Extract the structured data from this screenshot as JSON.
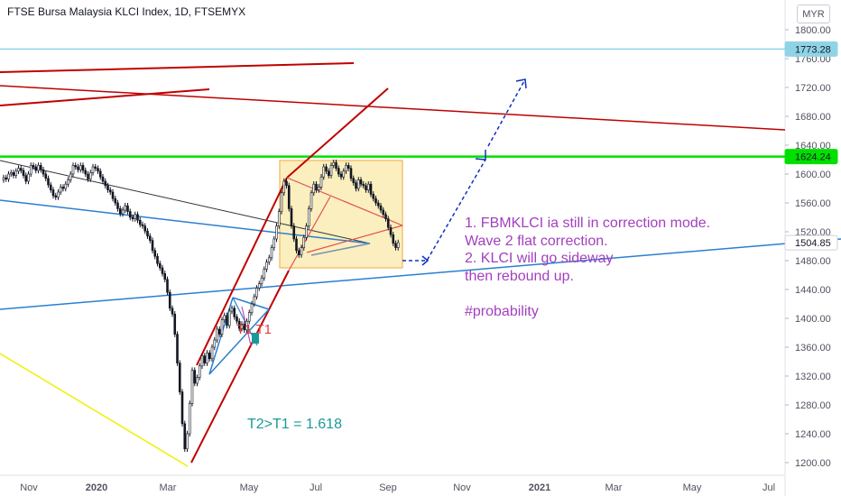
{
  "header": {
    "title": "FTSE Bursa Malaysia KLCI Index, 1D, FTSEMYX",
    "currency": "MYR"
  },
  "annotations": {
    "comment_lines": [
      "1. FBMKLCI ia still in correction mode.",
      "Wave 2 flat correction.",
      "2. KLCI will go sideway",
      "then rebound up.",
      "",
      "#probability"
    ],
    "fib_text": "T2>T1 = 1.618",
    "t_label": "T1 T1"
  },
  "colors": {
    "green_level": "#00e000",
    "cyan_level": "#8fd4e6",
    "red": "#c00000",
    "blue": "#2a7fd0",
    "dark_blue": "#1030c0",
    "yellow": "#f0f000",
    "box_fill": "#fbefbf",
    "box_stroke": "#f5b455",
    "comment": "#a33fbf",
    "fib_text": "#1a9a96"
  },
  "chart_data": {
    "type": "candlestick",
    "title": "FTSE Bursa Malaysia KLCI Index, 1D, FTSEMYX",
    "ylim": [
      1190,
      1820
    ],
    "y_ticks": [
      "1800.00",
      "1760.00",
      "1720.00",
      "1680.00",
      "1640.00",
      "1600.00",
      "1560.00",
      "1520.00",
      "1480.00",
      "1440.00",
      "1400.00",
      "1360.00",
      "1320.00",
      "1280.00",
      "1240.00",
      "1200.00"
    ],
    "x_ticks": [
      "Nov",
      "2020",
      "Mar",
      "May",
      "Jul",
      "Sep",
      "Nov",
      "2021",
      "Mar",
      "May",
      "Jul"
    ],
    "price_labels": [
      {
        "value": 1773.28,
        "text": "1773.28",
        "color": "#8fd4e6"
      },
      {
        "value": 1624.24,
        "text": "1624.24",
        "color": "#00e000"
      },
      {
        "value": 1504.85,
        "text": "1504.85",
        "color": "#ffffff"
      }
    ],
    "series": [
      {
        "name": "price",
        "close": [
          1595,
          1593,
          1600,
          1602,
          1598,
          1604,
          1608,
          1605,
          1598,
          1590,
          1600,
          1612,
          1610,
          1605,
          1612,
          1606,
          1600,
          1594,
          1585,
          1578,
          1570,
          1568,
          1575,
          1582,
          1580,
          1586,
          1592,
          1600,
          1612,
          1610,
          1606,
          1612,
          1605,
          1600,
          1593,
          1602,
          1610,
          1608,
          1604,
          1596,
          1590,
          1584,
          1578,
          1575,
          1566,
          1560,
          1552,
          1545,
          1550,
          1556,
          1548,
          1540,
          1538,
          1544,
          1536,
          1530,
          1528,
          1521,
          1514,
          1508,
          1494,
          1486,
          1476,
          1470,
          1462,
          1454,
          1436,
          1414,
          1406,
          1378,
          1338,
          1298,
          1254,
          1219,
          1240,
          1282,
          1328,
          1310,
          1318,
          1334,
          1348,
          1338,
          1352,
          1344,
          1360,
          1370,
          1385,
          1378,
          1398,
          1404,
          1390,
          1410,
          1414,
          1402,
          1396,
          1386,
          1392,
          1384,
          1396,
          1408,
          1420,
          1430,
          1442,
          1448,
          1456,
          1468,
          1478,
          1484,
          1498,
          1510,
          1528,
          1548,
          1574,
          1590,
          1584,
          1552,
          1528,
          1510,
          1494,
          1488,
          1498,
          1512,
          1528,
          1552,
          1574,
          1586,
          1578,
          1582,
          1596,
          1610,
          1604,
          1598,
          1612,
          1616,
          1608,
          1600,
          1596,
          1604,
          1612,
          1608,
          1594,
          1588,
          1580,
          1592,
          1586,
          1584,
          1578,
          1586,
          1572,
          1566,
          1560,
          1556,
          1550,
          1544,
          1538,
          1526,
          1516,
          1504,
          1498,
          1505
        ]
      }
    ],
    "levels": [
      1773.28,
      1624.24
    ]
  }
}
